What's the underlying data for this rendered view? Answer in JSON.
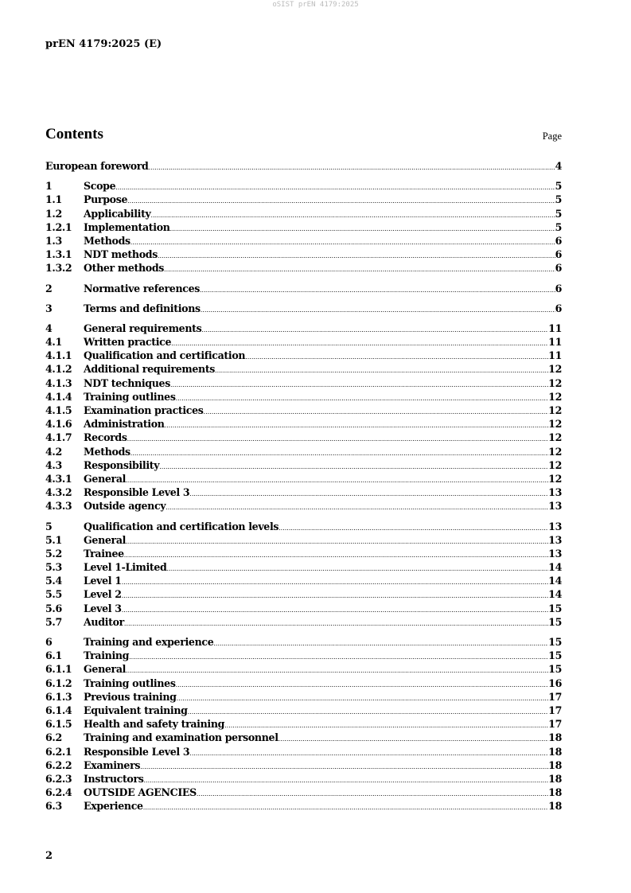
{
  "watermark": "oSIST prEN 4179:2025",
  "doc_id": "prEN 4179:2025 (E)",
  "contents_title": "Contents",
  "page_label": "Page",
  "groups": [
    [
      {
        "num": "",
        "title": "European foreword",
        "page": "4"
      }
    ],
    [
      {
        "num": "1",
        "title": "Scope",
        "page": "5"
      },
      {
        "num": "1.1",
        "title": "Purpose",
        "page": "5"
      },
      {
        "num": "1.2",
        "title": "Applicability",
        "page": "5"
      },
      {
        "num": "1.2.1",
        "title": "Implementation",
        "page": "5"
      },
      {
        "num": "1.3",
        "title": "Methods",
        "page": "6"
      },
      {
        "num": "1.3.1",
        "title": "NDT methods",
        "page": "6"
      },
      {
        "num": "1.3.2",
        "title": "Other methods",
        "page": "6"
      }
    ],
    [
      {
        "num": "2",
        "title": "Normative references",
        "page": "6"
      }
    ],
    [
      {
        "num": "3",
        "title": "Terms and definitions",
        "page": "6"
      }
    ],
    [
      {
        "num": "4",
        "title": "General requirements",
        "page": "11"
      },
      {
        "num": "4.1",
        "title": "Written practice",
        "page": "11"
      },
      {
        "num": "4.1.1",
        "title": "Qualification and certification",
        "page": "11"
      },
      {
        "num": "4.1.2",
        "title": "Additional requirements",
        "page": "12"
      },
      {
        "num": "4.1.3",
        "title": "NDT techniques",
        "page": "12"
      },
      {
        "num": "4.1.4",
        "title": "Training outlines",
        "page": "12"
      },
      {
        "num": "4.1.5",
        "title": "Examination practices",
        "page": "12"
      },
      {
        "num": "4.1.6",
        "title": "Administration",
        "page": "12"
      },
      {
        "num": "4.1.7",
        "title": "Records",
        "page": "12"
      },
      {
        "num": "4.2",
        "title": "Methods",
        "page": "12"
      },
      {
        "num": "4.3",
        "title": "Responsibility",
        "page": "12"
      },
      {
        "num": "4.3.1",
        "title": "General",
        "page": "12"
      },
      {
        "num": "4.3.2",
        "title": "Responsible Level 3",
        "page": "13"
      },
      {
        "num": "4.3.3",
        "title": "Outside agency",
        "page": "13"
      }
    ],
    [
      {
        "num": "5",
        "title": "Qualification and certification levels",
        "page": "13"
      },
      {
        "num": "5.1",
        "title": "General",
        "page": "13"
      },
      {
        "num": "5.2",
        "title": "Trainee",
        "page": "13"
      },
      {
        "num": "5.3",
        "title": "Level 1-Limited",
        "page": "14"
      },
      {
        "num": "5.4",
        "title": "Level 1",
        "page": "14"
      },
      {
        "num": "5.5",
        "title": "Level 2",
        "page": "14"
      },
      {
        "num": "5.6",
        "title": "Level 3",
        "page": "15"
      },
      {
        "num": "5.7",
        "title": "Auditor",
        "page": "15"
      }
    ],
    [
      {
        "num": "6",
        "title": "Training and experience",
        "page": "15"
      },
      {
        "num": "6.1",
        "title": "Training",
        "page": "15"
      },
      {
        "num": "6.1.1",
        "title": "General",
        "page": "15"
      },
      {
        "num": "6.1.2",
        "title": "Training outlines",
        "page": "16"
      },
      {
        "num": "6.1.3",
        "title": "Previous training",
        "page": "17"
      },
      {
        "num": "6.1.4",
        "title": "Equivalent training",
        "page": "17"
      },
      {
        "num": "6.1.5",
        "title": "Health and safety training",
        "page": "17"
      },
      {
        "num": "6.2",
        "title": "Training and examination personnel",
        "page": "18"
      },
      {
        "num": "6.2.1",
        "title": "Responsible Level 3",
        "page": "18"
      },
      {
        "num": "6.2.2",
        "title": "Examiners",
        "page": "18"
      },
      {
        "num": "6.2.3",
        "title": "Instructors",
        "page": "18"
      },
      {
        "num": "6.2.4",
        "title": "OUTSIDE AGENCIES",
        "page": "18"
      },
      {
        "num": "6.3",
        "title": "Experience",
        "page": "18"
      }
    ]
  ],
  "page_number": "2"
}
